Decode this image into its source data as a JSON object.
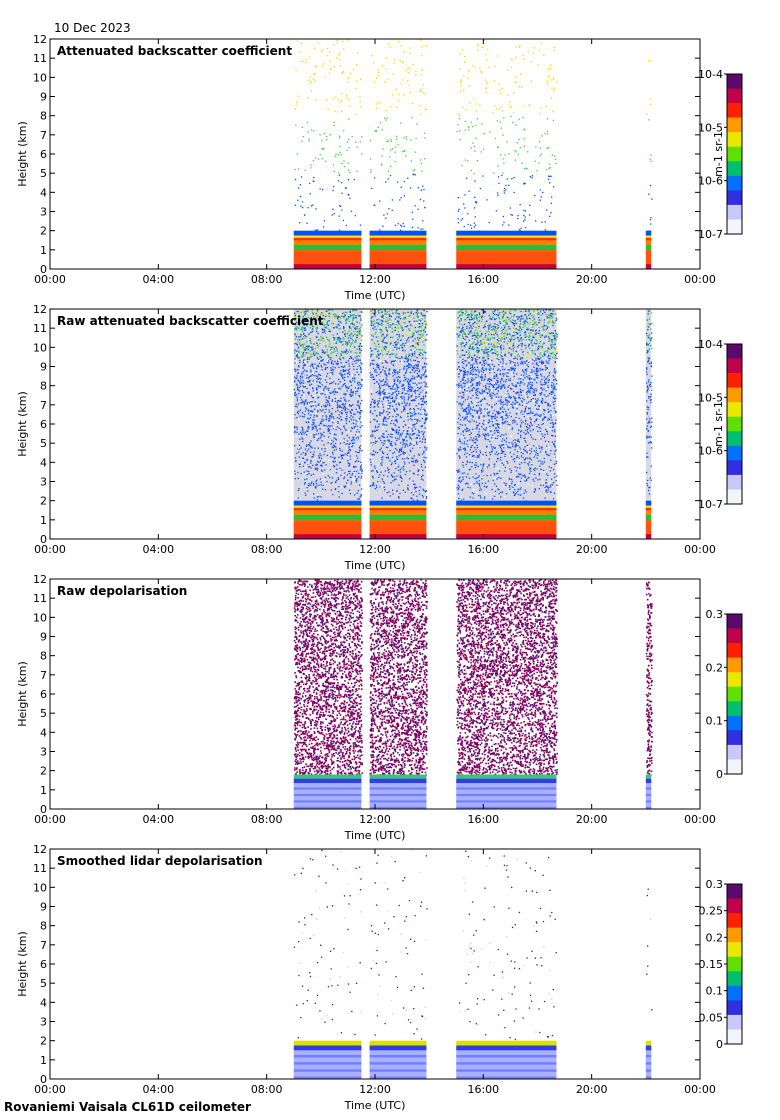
{
  "header": {
    "date": "10 Dec 2023"
  },
  "footer": {
    "site": "Rovaniemi Vaisala CL61D ceilometer"
  },
  "chart_data": [
    {
      "type": "heatmap",
      "title": "Attenuated backscatter coefficient",
      "xlabel": "Time (UTC)",
      "ylabel": "Height (km)",
      "xlim": [
        0,
        24
      ],
      "ylim": [
        0,
        12
      ],
      "xticks": [
        "00:00",
        "04:00",
        "08:00",
        "12:00",
        "16:00",
        "20:00",
        "00:00"
      ],
      "yticks": [
        "0",
        "1",
        "2",
        "3",
        "4",
        "5",
        "6",
        "7",
        "8",
        "9",
        "10",
        "11",
        "12"
      ],
      "colorbar": {
        "scale": "log",
        "ticks": [
          "10-7",
          "10-6",
          "10-5",
          "10-4"
        ],
        "unit": "m-1 sr-1"
      },
      "data_segments_hours": [
        [
          9.0,
          11.5
        ],
        [
          11.8,
          13.9
        ],
        [
          15.0,
          18.7
        ],
        [
          22.0,
          22.2
        ]
      ],
      "surface_layer_top_km": 2.0,
      "style": "sparse"
    },
    {
      "type": "heatmap",
      "title": "Raw attenuated backscatter coefficient",
      "xlabel": "Time (UTC)",
      "ylabel": "Height (km)",
      "xlim": [
        0,
        24
      ],
      "ylim": [
        0,
        12
      ],
      "xticks": [
        "00:00",
        "04:00",
        "08:00",
        "12:00",
        "16:00",
        "20:00",
        "00:00"
      ],
      "yticks": [
        "0",
        "1",
        "2",
        "3",
        "4",
        "5",
        "6",
        "7",
        "8",
        "9",
        "10",
        "11",
        "12"
      ],
      "colorbar": {
        "scale": "log",
        "ticks": [
          "10-7",
          "10-6",
          "10-5",
          "10-4"
        ],
        "unit": "m-1 sr-1"
      },
      "data_segments_hours": [
        [
          9.0,
          11.5
        ],
        [
          11.8,
          13.9
        ],
        [
          15.0,
          18.7
        ],
        [
          22.0,
          22.2
        ]
      ],
      "surface_layer_top_km": 2.0,
      "style": "raw_bsc"
    },
    {
      "type": "heatmap",
      "title": "Raw depolarisation",
      "xlabel": "Time (UTC)",
      "ylabel": "Height (km)",
      "xlim": [
        0,
        24
      ],
      "ylim": [
        0,
        12
      ],
      "xticks": [
        "00:00",
        "04:00",
        "08:00",
        "12:00",
        "16:00",
        "20:00",
        "00:00"
      ],
      "yticks": [
        "0",
        "1",
        "2",
        "3",
        "4",
        "5",
        "6",
        "7",
        "8",
        "9",
        "10",
        "11",
        "12"
      ],
      "colorbar": {
        "scale": "linear",
        "range": [
          0,
          0.3
        ],
        "ticks": [
          "0",
          "0.1",
          "0.2",
          "0.3"
        ],
        "unit": ""
      },
      "data_segments_hours": [
        [
          9.0,
          11.5
        ],
        [
          11.8,
          13.9
        ],
        [
          15.0,
          18.7
        ],
        [
          22.0,
          22.2
        ]
      ],
      "surface_layer_top_km": 1.8,
      "style": "raw_depol"
    },
    {
      "type": "heatmap",
      "title": "Smoothed lidar depolarisation",
      "xlabel": "Time (UTC)",
      "ylabel": "Height (km)",
      "xlim": [
        0,
        24
      ],
      "ylim": [
        0,
        12
      ],
      "xticks": [
        "00:00",
        "04:00",
        "08:00",
        "12:00",
        "16:00",
        "20:00",
        "00:00"
      ],
      "yticks": [
        "0",
        "1",
        "2",
        "3",
        "4",
        "5",
        "6",
        "7",
        "8",
        "9",
        "10",
        "11",
        "12"
      ],
      "colorbar": {
        "scale": "linear",
        "range": [
          0,
          0.3
        ],
        "ticks": [
          "0",
          "0.05",
          "0.1",
          "0.15",
          "0.2",
          "0.25",
          "0.3"
        ],
        "unit": ""
      },
      "data_segments_hours": [
        [
          9.0,
          11.5
        ],
        [
          11.8,
          13.9
        ],
        [
          15.0,
          18.7
        ],
        [
          22.0,
          22.2
        ]
      ],
      "surface_layer_top_km": 2.0,
      "style": "smooth_depol"
    }
  ]
}
